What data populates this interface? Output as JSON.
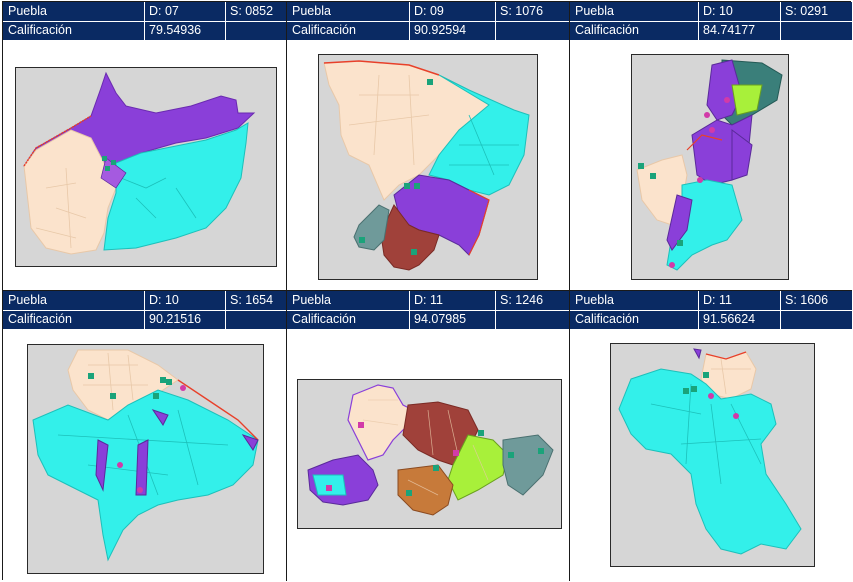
{
  "panels": [
    {
      "municipio": "Puebla",
      "distrito": "D: 07",
      "seccion": "S: 0852",
      "label": "Calificación",
      "score": "79.54936"
    },
    {
      "municipio": "Puebla",
      "distrito": "D: 09",
      "seccion": "S: 1076",
      "label": "Calificación",
      "score": "90.92594"
    },
    {
      "municipio": "Puebla",
      "distrito": "D: 10",
      "seccion": "S: 0291",
      "label": "Calificación",
      "score": "84.74177"
    },
    {
      "municipio": "Puebla",
      "distrito": "D: 10",
      "seccion": "S: 1654",
      "label": "Calificación",
      "score": "90.21516"
    },
    {
      "municipio": "Puebla",
      "distrito": "D: 11",
      "seccion": "S: 1246",
      "label": "Calificación",
      "score": "94.07985"
    },
    {
      "municipio": "Puebla",
      "distrito": "D: 11",
      "seccion": "S: 1606",
      "label": "Calificación",
      "score": "91.56624"
    }
  ],
  "colors": {
    "header_bg": "#0a2a63",
    "map_bg": "#d6d6d6",
    "peach": "#fbe3cc",
    "cyan": "#33f0ea",
    "purple": "#8a3fd9",
    "brown": "#a0413a",
    "slate": "#6f9a9a",
    "lime": "#a8f03a",
    "orange": "#c77a3a",
    "teal_dark": "#3a7f7a",
    "boundary_red": "#e8402a",
    "poi_green": "#1aa37a",
    "poi_pink": "#d23aa8"
  },
  "icons": [
    "school-marker-icon",
    "pin-marker-icon"
  ]
}
